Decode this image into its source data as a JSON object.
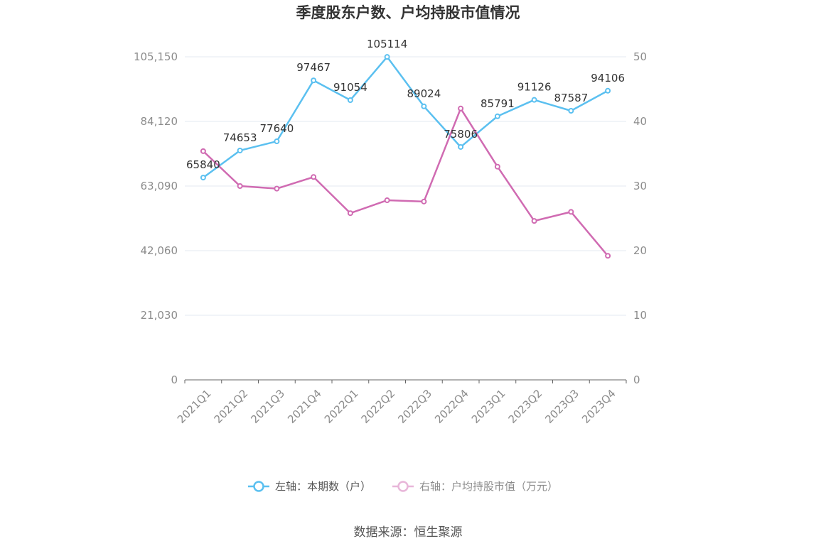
{
  "chart_data": {
    "type": "line",
    "title": "季度股东户数、户均持股市值情况",
    "categories": [
      "2021Q1",
      "2021Q2",
      "2021Q3",
      "2021Q4",
      "2022Q1",
      "2022Q2",
      "2022Q3",
      "2022Q4",
      "2023Q1",
      "2023Q2",
      "2023Q3",
      "2023Q4"
    ],
    "y_left": {
      "ticks": [
        "0",
        "21,030",
        "42,060",
        "63,090",
        "84,120",
        "105,150"
      ],
      "range": [
        0,
        105150
      ]
    },
    "y_right": {
      "ticks": [
        "0",
        "10",
        "20",
        "30",
        "40",
        "50"
      ],
      "range": [
        0,
        50
      ]
    },
    "series": [
      {
        "name": "左轴：本期数（户）",
        "axis": "left",
        "color": "#5bc0f0",
        "values": [
          65840,
          74653,
          77640,
          97467,
          91054,
          105114,
          89024,
          75806,
          85791,
          91126,
          87587,
          94106
        ],
        "labels": [
          "65840",
          "74653",
          "77640",
          "97467",
          "91054",
          "105114",
          "89024",
          "75806",
          "85791",
          "91126",
          "87587",
          "94106"
        ]
      },
      {
        "name": "右轴：户均持股市值（万元）",
        "axis": "right",
        "color": "#d06bb2",
        "values": [
          35.4,
          30.0,
          29.6,
          31.4,
          25.8,
          27.8,
          27.6,
          42.0,
          33.0,
          24.6,
          26.0,
          19.2
        ]
      }
    ],
    "grid": true,
    "legend": "bottom"
  },
  "source": "数据来源：恒生聚源"
}
